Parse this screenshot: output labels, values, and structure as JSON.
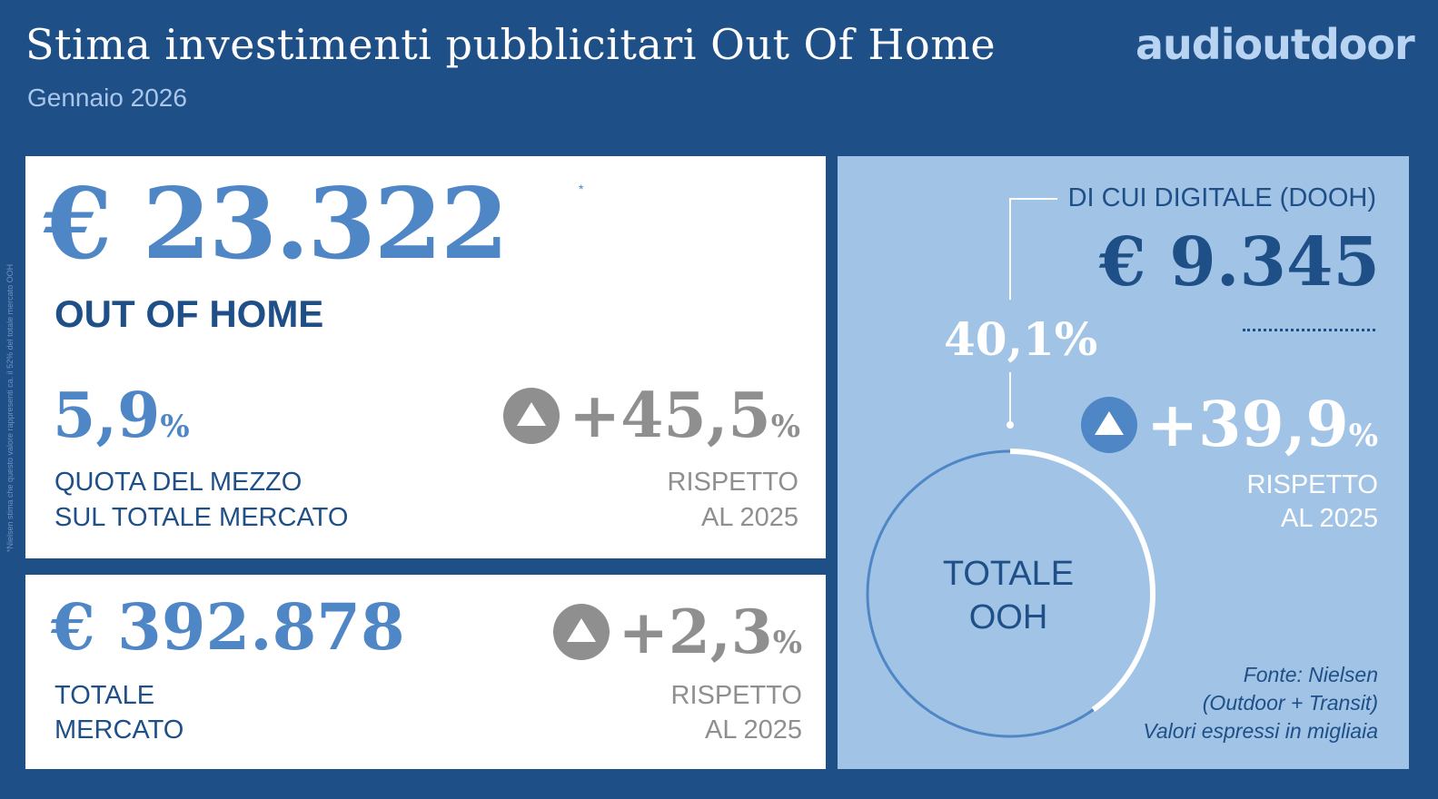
{
  "header": {
    "title": "Stima investimenti pubblicitari Out Of Home",
    "subtitle": "Gennaio 2026",
    "logo": "audioutdoor"
  },
  "side_note": "*Nielsen stima che questo valore rappresenti ca. il 52% del totale mercato OOH",
  "ooh": {
    "value": "€ 23.322",
    "asterisk": "*",
    "label": "OUT OF HOME",
    "share_value": "5,9",
    "share_unit": "%",
    "share_label_1": "QUOTA DEL MEZZO",
    "share_label_2": "SUL TOTALE MERCATO",
    "growth_value": "+45,5",
    "growth_unit": "%",
    "growth_label_1": "RISPETTO",
    "growth_label_2": "AL 2025"
  },
  "total_market": {
    "value": "€ 392.878",
    "label_1": "TOTALE",
    "label_2": "MERCATO",
    "growth_value": "+2,3",
    "growth_unit": "%",
    "growth_label_1": "RISPETTO",
    "growth_label_2": "AL 2025"
  },
  "dooh": {
    "title": "DI CUI DIGITALE (DOOH)",
    "value": "€ 9.345",
    "share_pct": "40,1%",
    "share_fraction": 0.401,
    "growth_value": "+39,9",
    "growth_unit": "%",
    "growth_label_1": "RISPETTO",
    "growth_label_2": "AL 2025",
    "donut_label_1": "TOTALE",
    "donut_label_2": "OOH"
  },
  "source": {
    "line_1": "Fonte: Nielsen",
    "line_2": "(Outdoor + Transit)",
    "line_3": "Valori espressi in migliaia"
  },
  "colors": {
    "background": "#1f4f87",
    "accent_blue": "#4f86c6",
    "dark_blue": "#1f4f87",
    "light_panel": "#a0c3e6",
    "grey": "#8f8f8f",
    "logo": "#b9d4f2"
  },
  "icons": {
    "growth": "up-triangle-icon"
  }
}
